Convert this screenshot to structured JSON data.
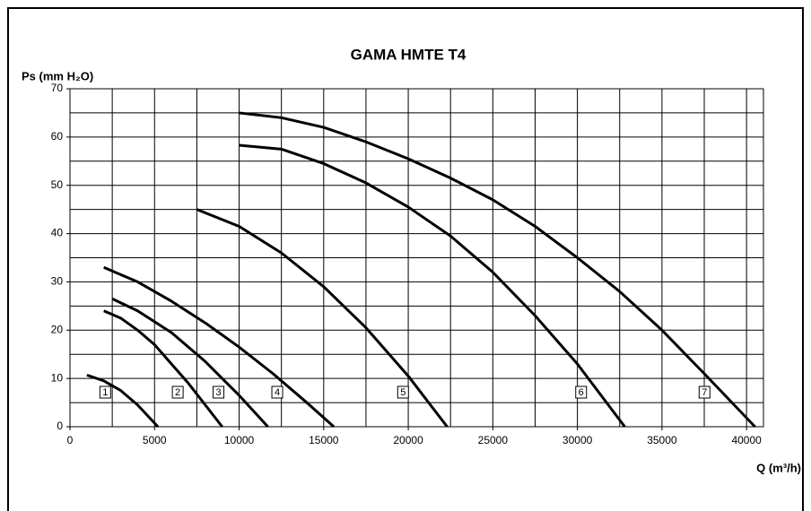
{
  "chart_data": {
    "type": "line",
    "title": "GAMA HMTE T4",
    "y_label": "Ps (mm H₂O)",
    "x_label": "Q (m³/h)",
    "xlim": [
      0,
      41000
    ],
    "xticks": [
      0,
      5000,
      10000,
      15000,
      20000,
      25000,
      30000,
      35000,
      40000
    ],
    "ylim": [
      0,
      70
    ],
    "yticks": [
      0,
      10,
      20,
      30,
      40,
      50,
      60,
      70
    ],
    "grid": true,
    "series": [
      {
        "name": "1",
        "color": "#000000",
        "x": [
          1000,
          2000,
          3000,
          4000,
          5200
        ],
        "values": [
          10.7,
          9.5,
          7.5,
          4.5,
          0
        ]
      },
      {
        "name": "2",
        "color": "#000000",
        "x": [
          2000,
          3000,
          4000,
          5000,
          6000,
          7000,
          8000,
          9000
        ],
        "values": [
          24,
          22.5,
          20,
          17,
          13,
          9,
          4.5,
          0
        ]
      },
      {
        "name": "3",
        "color": "#000000",
        "x": [
          2500,
          4000,
          6000,
          8000,
          10000,
          11700
        ],
        "values": [
          26.5,
          24,
          19.5,
          13.5,
          6.5,
          0
        ]
      },
      {
        "name": "4",
        "color": "#000000",
        "x": [
          2000,
          4000,
          6000,
          8000,
          10000,
          12000,
          14000,
          15600
        ],
        "values": [
          33,
          30,
          26,
          21.5,
          16.5,
          11,
          5,
          0
        ]
      },
      {
        "name": "5",
        "color": "#000000",
        "x": [
          7500,
          10000,
          12500,
          15000,
          17500,
          20000,
          22300
        ],
        "values": [
          45,
          41.5,
          36,
          29,
          20.5,
          10.5,
          0
        ]
      },
      {
        "name": "6",
        "color": "#000000",
        "x": [
          10000,
          12500,
          15000,
          17500,
          20000,
          22500,
          25000,
          27500,
          30000,
          32800
        ],
        "values": [
          58.3,
          57.5,
          54.5,
          50.5,
          45.5,
          39.5,
          32,
          23,
          13,
          0
        ]
      },
      {
        "name": "7",
        "color": "#000000",
        "x": [
          10000,
          12500,
          15000,
          17500,
          20000,
          22500,
          25000,
          27500,
          30000,
          32500,
          35000,
          37500,
          40500
        ],
        "values": [
          65,
          64,
          62,
          59,
          55.5,
          51.5,
          47,
          41.5,
          35,
          28,
          20,
          11,
          0
        ]
      }
    ]
  }
}
